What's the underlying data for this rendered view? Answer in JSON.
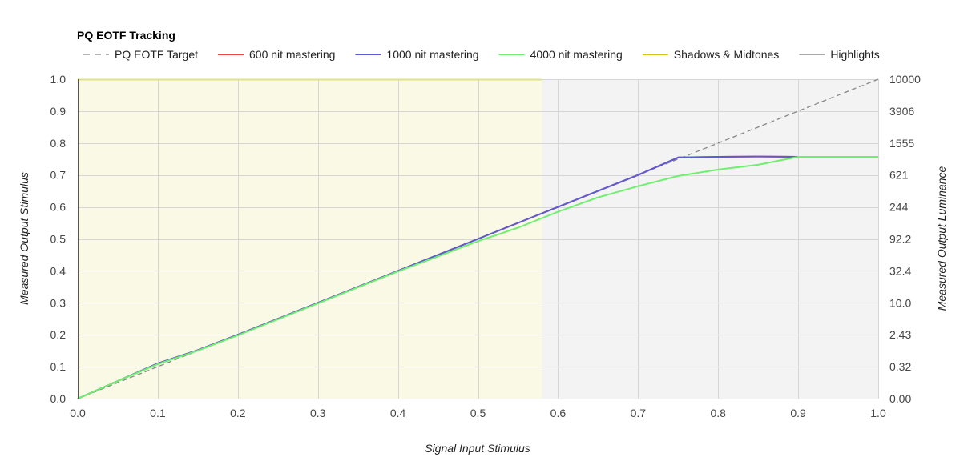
{
  "chart_data": {
    "type": "line",
    "title": "PQ EOTF Tracking",
    "xlabel": "Signal Input Stimulus",
    "ylabel": "Measured Output Stimulus",
    "y2label": "Measured Output Luminance",
    "xlim": [
      0,
      1
    ],
    "ylim": [
      0,
      1
    ],
    "x_ticks": [
      "0.0",
      "0.1",
      "0.2",
      "0.3",
      "0.4",
      "0.5",
      "0.6",
      "0.7",
      "0.8",
      "0.9",
      "1.0"
    ],
    "y_ticks": [
      "0.0",
      "0.1",
      "0.2",
      "0.3",
      "0.4",
      "0.5",
      "0.6",
      "0.7",
      "0.8",
      "0.9",
      "1.0"
    ],
    "y2_ticks": [
      "0.00",
      "0.32",
      "2.43",
      "10.0",
      "32.4",
      "92.2",
      "244",
      "621",
      "1555",
      "3906",
      "10000"
    ],
    "grid": true,
    "legend_position": "top-left",
    "regions": [
      {
        "name": "Shadows & Midtones",
        "x_range": [
          0,
          0.58
        ],
        "fill": "#faf9e6",
        "color": "#d4c41a"
      },
      {
        "name": "Highlights",
        "x_range": [
          0.58,
          1.0
        ],
        "fill": "#f3f3f3",
        "color": "#a9a9a9"
      }
    ],
    "series": [
      {
        "name": "PQ EOTF Target",
        "color": "#888888",
        "dashed": true,
        "x": [
          0,
          1
        ],
        "y": [
          0,
          1
        ]
      },
      {
        "name": "600 nit mastering",
        "color": "#ef4444",
        "dashed": false,
        "x": [
          0,
          0.05,
          0.1,
          0.15,
          0.2,
          0.25,
          0.3,
          0.35,
          0.4,
          0.45,
          0.5,
          0.55,
          0.6,
          0.65,
          0.7,
          0.75,
          0.8,
          0.85,
          0.9,
          0.95,
          1.0
        ],
        "y": [
          0,
          0.055,
          0.11,
          0.152,
          0.2,
          0.25,
          0.3,
          0.35,
          0.4,
          0.45,
          0.5,
          0.55,
          0.6,
          0.65,
          0.7,
          0.755,
          0.757,
          0.758,
          0.757,
          0.757,
          0.757
        ]
      },
      {
        "name": "1000 nit mastering",
        "color": "#5b5bd6",
        "dashed": false,
        "x": [
          0,
          0.05,
          0.1,
          0.15,
          0.2,
          0.25,
          0.3,
          0.35,
          0.4,
          0.45,
          0.5,
          0.55,
          0.6,
          0.65,
          0.7,
          0.75,
          0.8,
          0.85,
          0.9,
          0.95,
          1.0
        ],
        "y": [
          0,
          0.055,
          0.11,
          0.152,
          0.2,
          0.25,
          0.3,
          0.35,
          0.4,
          0.45,
          0.5,
          0.55,
          0.6,
          0.65,
          0.7,
          0.755,
          0.757,
          0.758,
          0.757,
          0.757,
          0.757
        ]
      },
      {
        "name": "4000 nit mastering",
        "color": "#6ef06e",
        "dashed": false,
        "x": [
          0,
          0.05,
          0.1,
          0.15,
          0.2,
          0.25,
          0.3,
          0.35,
          0.4,
          0.45,
          0.5,
          0.55,
          0.6,
          0.65,
          0.7,
          0.75,
          0.8,
          0.85,
          0.9,
          0.95,
          1.0
        ],
        "y": [
          0,
          0.055,
          0.108,
          0.15,
          0.198,
          0.248,
          0.298,
          0.348,
          0.398,
          0.445,
          0.493,
          0.535,
          0.585,
          0.63,
          0.665,
          0.697,
          0.717,
          0.732,
          0.757,
          0.757,
          0.757
        ]
      }
    ]
  }
}
